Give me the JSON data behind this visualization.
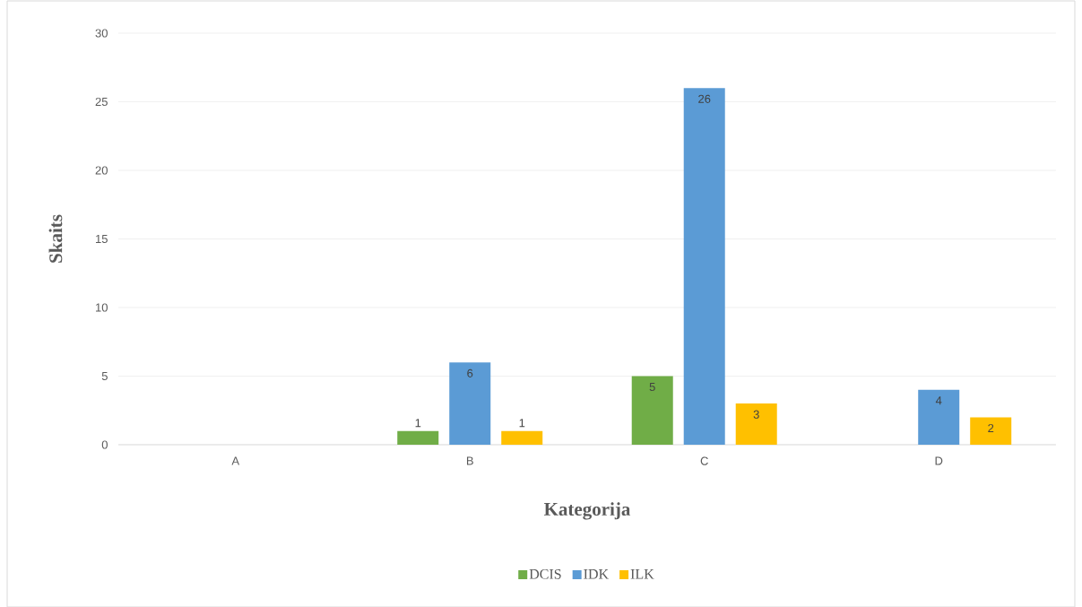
{
  "chart_data": {
    "type": "bar",
    "xlabel": "Kategorija",
    "ylabel": "Skaits",
    "categories": [
      "A",
      "B",
      "C",
      "D"
    ],
    "series": [
      {
        "name": "DCIS",
        "color": "#70ad47",
        "values": [
          null,
          1,
          5,
          null
        ]
      },
      {
        "name": "IDK",
        "color": "#5b9bd5",
        "values": [
          null,
          6,
          26,
          4
        ]
      },
      {
        "name": "ILK",
        "color": "#ffc000",
        "values": [
          null,
          1,
          3,
          2
        ]
      }
    ],
    "ylim": [
      0,
      30
    ],
    "yticks": [
      0,
      5,
      10,
      15,
      20,
      25,
      30
    ],
    "grid": "y",
    "legend": "bottom",
    "data_labels": true
  }
}
